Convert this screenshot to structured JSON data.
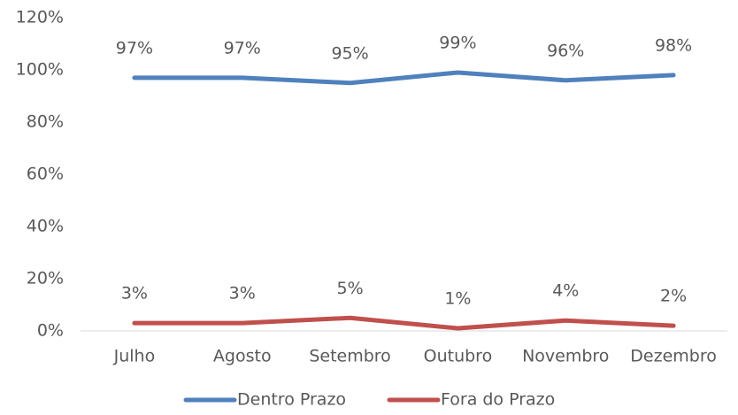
{
  "chart_data": {
    "type": "line",
    "categories": [
      "Julho",
      "Agosto",
      "Setembro",
      "Outubro",
      "Novembro",
      "Dezembro"
    ],
    "series": [
      {
        "name": "Dentro Prazo",
        "color": "#4f81bd",
        "values": [
          97,
          97,
          95,
          99,
          96,
          98
        ],
        "value_labels": [
          "97%",
          "97%",
          "95%",
          "99%",
          "96%",
          "98%"
        ]
      },
      {
        "name": "Fora do Prazo",
        "color": "#c0504d",
        "values": [
          3,
          3,
          5,
          1,
          4,
          2
        ],
        "value_labels": [
          "3%",
          "3%",
          "5%",
          "1%",
          "4%",
          "2%"
        ]
      }
    ],
    "ylim": [
      0,
      120
    ],
    "yticks": [
      {
        "value": 0,
        "label": "0%"
      },
      {
        "value": 20,
        "label": "20%"
      },
      {
        "value": 40,
        "label": "40%"
      },
      {
        "value": 60,
        "label": "60%"
      },
      {
        "value": 80,
        "label": "80%"
      },
      {
        "value": 100,
        "label": "100%"
      },
      {
        "value": 120,
        "label": "120%"
      }
    ],
    "grid": false,
    "legend": "bottom"
  }
}
